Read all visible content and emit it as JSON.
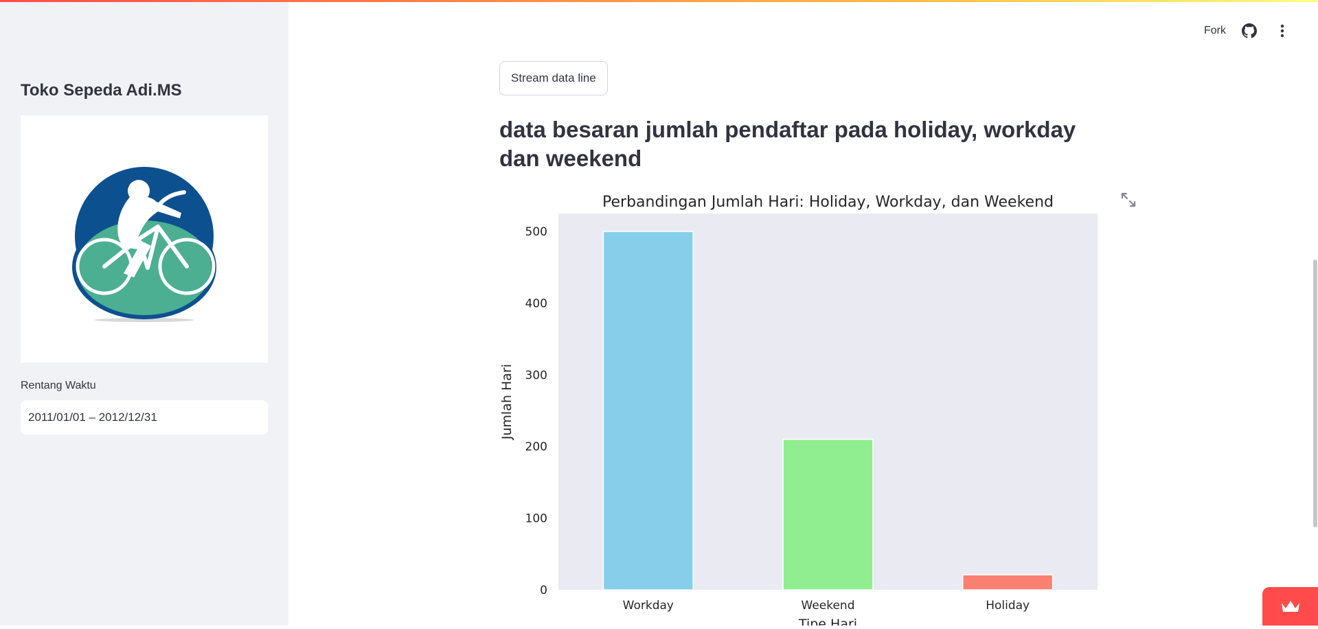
{
  "sidebar": {
    "title": "Toko Sepeda Adi.MS",
    "logo_icon": "cyclist-logo-icon",
    "date_range": {
      "label": "Rentang Waktu",
      "value": "2011/01/01 – 2012/12/31"
    }
  },
  "header": {
    "fork_label": "Fork",
    "github_icon": "github-icon",
    "menu_icon": "kebab-menu-icon"
  },
  "main": {
    "stream_button_label": "Stream data line",
    "heading": "data besaran jumlah pendaftar pada holiday, workday dan weekend"
  },
  "chart_data": {
    "type": "bar",
    "title": "Perbandingan Jumlah Hari: Holiday, Workday, dan Weekend",
    "xlabel": "Tipe Hari",
    "ylabel": "Jumlah Hari",
    "categories": [
      "Workday",
      "Weekend",
      "Holiday"
    ],
    "values": [
      500,
      210,
      21
    ],
    "colors": [
      "#87ceeb",
      "#90ee90",
      "#fa8072"
    ],
    "ylim": [
      0,
      525
    ],
    "yticks": [
      0,
      100,
      200,
      300,
      400,
      500
    ],
    "grid": false,
    "plot_background": "#eaeaf2"
  },
  "colors": {
    "accent": "#ff4b4b",
    "sidebar_bg": "#f0f2f6",
    "text": "#31333f"
  }
}
